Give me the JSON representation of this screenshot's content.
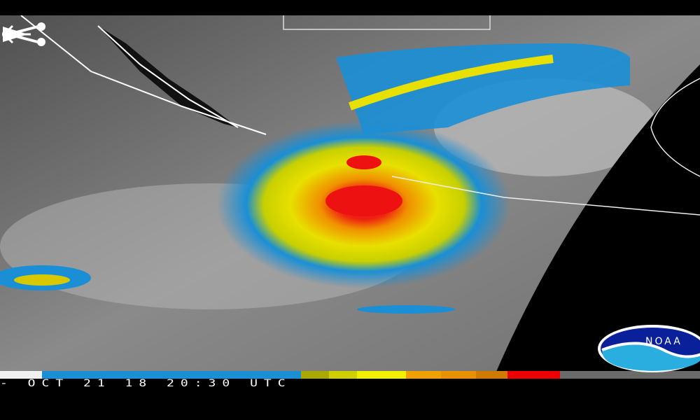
{
  "toolbar": {
    "back_icon": "arrow-left-icon",
    "play_icon": "play-icon",
    "share_icon": "share-icon"
  },
  "image": {
    "timestamp": "- OCT 21 18 20:30 UTC",
    "logo_text": "NOAA",
    "colorbar": [
      "#f0f0f0",
      "#1a8fd6",
      "#a8a800",
      "#d8d800",
      "#f0f000",
      "#f0a000",
      "#e89000",
      "#e08000",
      "#ee0000",
      "#6a6a6a"
    ]
  },
  "colors": {
    "background": "#000000",
    "storm_core": "#ee1111",
    "accent_blue": "#1a8fd6"
  }
}
